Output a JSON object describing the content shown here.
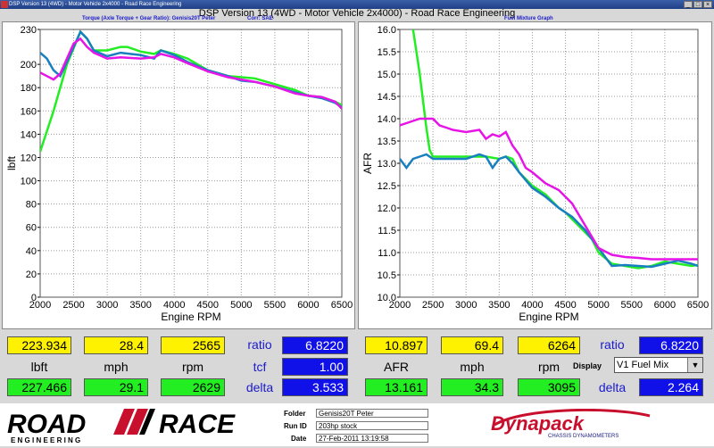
{
  "window": {
    "title": "DSP Version 13 (4WD) - Motor Vehicle 2x4000 - Road Race Engineering",
    "main_title": "DSP Version 13 (4WD - Motor Vehicle 2x4000) - Road Race Engineering"
  },
  "left_chart_header": {
    "title": "Torque (Axle Torque + Gear Ratio): Genisis20T Peter",
    "corr": "Corr: SAE"
  },
  "right_chart_header": {
    "title": "Fuel Mixture Graph"
  },
  "chart_data": [
    {
      "type": "line",
      "xlabel": "Engine RPM",
      "ylabel": "lbft",
      "xlim": [
        2000,
        6500
      ],
      "ylim": [
        0,
        230
      ],
      "xticks": [
        2000,
        2500,
        3000,
        3500,
        4000,
        4500,
        5000,
        5500,
        6000,
        6500
      ],
      "yticks": [
        0,
        20,
        40,
        60,
        80,
        100,
        120,
        140,
        160,
        180,
        200,
        230
      ],
      "grid": true,
      "series": [
        {
          "color": "#22ee22",
          "x": [
            2000,
            2200,
            2400,
            2600,
            2700,
            2800,
            3000,
            3200,
            3300,
            3500,
            3700,
            3800,
            4000,
            4200,
            4500,
            4800,
            5000,
            5200,
            5500,
            5800,
            6000,
            6200,
            6400,
            6500
          ],
          "y": [
            125,
            160,
            200,
            228,
            222,
            212,
            212,
            215,
            215,
            211,
            209,
            212,
            209,
            205,
            195,
            190,
            189,
            188,
            183,
            178,
            173,
            172,
            168,
            165
          ]
        },
        {
          "color": "#1a7fc0",
          "x": [
            2000,
            2100,
            2200,
            2300,
            2400,
            2500,
            2600,
            2700,
            2800,
            3000,
            3200,
            3500,
            3700,
            3800,
            4000,
            4200,
            4500,
            4800,
            5000,
            5200,
            5500,
            5800,
            6000,
            6200,
            6400,
            6500
          ],
          "y": [
            210,
            205,
            195,
            190,
            202,
            215,
            228,
            222,
            212,
            207,
            210,
            208,
            205,
            212,
            208,
            202,
            195,
            190,
            186,
            185,
            181,
            176,
            173,
            171,
            167,
            163
          ]
        },
        {
          "color": "#e614e6",
          "x": [
            2000,
            2100,
            2200,
            2300,
            2400,
            2500,
            2600,
            2700,
            2800,
            3000,
            3200,
            3500,
            3700,
            3800,
            4000,
            4200,
            4500,
            4800,
            5000,
            5200,
            5500,
            5800,
            6000,
            6200,
            6400,
            6500
          ],
          "y": [
            193,
            190,
            187,
            192,
            205,
            218,
            222,
            215,
            210,
            205,
            206,
            205,
            206,
            209,
            206,
            201,
            194,
            189,
            187,
            185,
            181,
            175,
            173,
            172,
            168,
            162
          ]
        }
      ]
    },
    {
      "type": "line",
      "xlabel": "Engine RPM",
      "ylabel": "AFR",
      "xlim": [
        2000,
        6500
      ],
      "ylim": [
        10.0,
        16.0
      ],
      "xticks": [
        2000,
        2500,
        3000,
        3500,
        4000,
        4500,
        5000,
        5500,
        6000,
        6500
      ],
      "yticks": [
        10.0,
        10.5,
        11.0,
        11.5,
        12.0,
        12.5,
        13.0,
        13.5,
        14.0,
        14.5,
        15.0,
        15.5,
        16.0
      ],
      "grid": true,
      "series": [
        {
          "color": "#22ee22",
          "x": [
            2200,
            2250,
            2300,
            2350,
            2400,
            2450,
            2500,
            2700,
            3000,
            3300,
            3500,
            3600,
            3700,
            3800,
            4000,
            4200,
            4400,
            4500,
            4700,
            4900,
            5000,
            5200,
            5400,
            5600,
            5800,
            6000,
            6200,
            6400,
            6500
          ],
          "y": [
            16.0,
            15.5,
            15.0,
            14.4,
            13.8,
            13.3,
            13.15,
            13.15,
            13.15,
            13.15,
            13.1,
            13.15,
            13.1,
            12.8,
            12.5,
            12.3,
            12.0,
            11.9,
            11.6,
            11.3,
            11.0,
            10.75,
            10.7,
            10.65,
            10.7,
            10.8,
            10.75,
            10.7,
            10.72
          ]
        },
        {
          "color": "#1a7fc0",
          "x": [
            2000,
            2100,
            2200,
            2300,
            2400,
            2500,
            2700,
            3000,
            3200,
            3300,
            3400,
            3500,
            3600,
            3700,
            3800,
            4000,
            4200,
            4400,
            4600,
            4800,
            5000,
            5200,
            5400,
            5600,
            5800,
            6000,
            6200,
            6400,
            6500
          ],
          "y": [
            13.1,
            12.9,
            13.1,
            13.15,
            13.2,
            13.1,
            13.1,
            13.1,
            13.2,
            13.15,
            12.9,
            13.1,
            13.15,
            13.0,
            12.8,
            12.45,
            12.25,
            12.0,
            11.8,
            11.5,
            11.1,
            10.7,
            10.72,
            10.7,
            10.68,
            10.75,
            10.82,
            10.75,
            10.7
          ]
        },
        {
          "color": "#e614e6",
          "x": [
            2000,
            2100,
            2200,
            2300,
            2400,
            2500,
            2600,
            2700,
            2800,
            3000,
            3200,
            3300,
            3400,
            3500,
            3600,
            3700,
            3800,
            3900,
            4000,
            4200,
            4400,
            4600,
            4800,
            5000,
            5200,
            5400,
            5600,
            5800,
            6000,
            6200,
            6400,
            6500
          ],
          "y": [
            13.85,
            13.9,
            13.95,
            14.0,
            14.0,
            14.0,
            13.85,
            13.8,
            13.75,
            13.7,
            13.75,
            13.55,
            13.65,
            13.6,
            13.7,
            13.4,
            13.2,
            12.9,
            12.8,
            12.55,
            12.4,
            12.1,
            11.6,
            11.1,
            10.95,
            10.9,
            10.88,
            10.85,
            10.85,
            10.85,
            10.85,
            10.85
          ]
        }
      ]
    }
  ],
  "left_readout": {
    "row1": [
      "223.934",
      "28.4",
      "2565"
    ],
    "units": [
      "lbft",
      "mph",
      "rpm"
    ],
    "row3": [
      "227.466",
      "29.1",
      "2629"
    ],
    "ratio_label": "ratio",
    "ratio_value": "6.8220",
    "tcf_label": "tcf",
    "tcf_value": "1.00",
    "delta_label": "delta",
    "delta_value": "3.533"
  },
  "right_readout": {
    "row1": [
      "10.897",
      "69.4",
      "6264"
    ],
    "units": [
      "AFR",
      "mph",
      "rpm"
    ],
    "row3": [
      "13.161",
      "34.3",
      "3095"
    ],
    "ratio_label": "ratio",
    "ratio_value": "6.8220",
    "display_label": "Display",
    "display_value": "V1 Fuel Mix",
    "delta_label": "delta",
    "delta_value": "2.264"
  },
  "footer": {
    "logo_top": "ROAD",
    "logo_right": "RACE",
    "logo_sub": "E N G I N E E R I N G",
    "folder_label": "Folder",
    "folder_value": "Genisis20T Peter",
    "runid_label": "Run ID",
    "runid_value": "203hp stock",
    "date_label": "Date",
    "date_value": "27-Feb-2011 13:19:58",
    "brand": "Dynapack",
    "brand_sub": "CHASSIS DYNAMOMETERS"
  },
  "colors": {
    "green": "#22ee22",
    "blue": "#1a7fc0",
    "magenta": "#e614e6",
    "readout_yellow": "#fff200",
    "readout_green": "#22ee22",
    "readout_blue": "#1010e8"
  }
}
